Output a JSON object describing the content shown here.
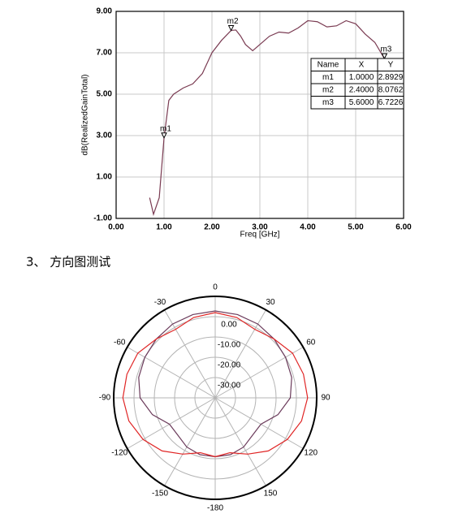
{
  "heading": "3、 方向图测试",
  "chart_data": [
    {
      "type": "line",
      "xlabel": "Freq [GHz]",
      "ylabel": "dB(RealizedGainTotal)",
      "x": [
        0.7,
        0.78,
        0.9,
        1.0,
        1.1,
        1.2,
        1.4,
        1.6,
        1.8,
        2.0,
        2.2,
        2.4,
        2.5,
        2.6,
        2.7,
        2.85,
        3.0,
        3.2,
        3.4,
        3.6,
        3.8,
        4.0,
        4.2,
        4.4,
        4.6,
        4.8,
        5.0,
        5.2,
        5.4,
        5.6
      ],
      "values": [
        0,
        -0.8,
        0,
        2.89,
        4.7,
        5.0,
        5.3,
        5.5,
        6.0,
        7.0,
        7.6,
        8.08,
        8.1,
        7.8,
        7.4,
        7.1,
        7.4,
        7.8,
        8.0,
        7.95,
        8.2,
        8.55,
        8.5,
        8.25,
        8.3,
        8.55,
        8.4,
        7.9,
        7.5,
        6.72
      ],
      "color": "#7a3b52",
      "xlim": [
        0,
        6
      ],
      "ylim": [
        -1,
        9
      ],
      "xticks": [
        {
          "value": 0,
          "label": "0.00"
        },
        {
          "value": 1,
          "label": "1.00"
        },
        {
          "value": 2,
          "label": "2.00"
        },
        {
          "value": 3,
          "label": "3.00"
        },
        {
          "value": 4,
          "label": "4.00"
        },
        {
          "value": 5,
          "label": "5.00"
        },
        {
          "value": 6,
          "label": "6.00"
        }
      ],
      "yticks": [
        {
          "value": -1,
          "label": "-1.00"
        },
        {
          "value": 1,
          "label": "1.00"
        },
        {
          "value": 3,
          "label": "3.00"
        },
        {
          "value": 5,
          "label": "5.00"
        },
        {
          "value": 7,
          "label": "7.00"
        },
        {
          "value": 9,
          "label": "9.00"
        }
      ],
      "grid": true,
      "markers": {
        "columns": [
          "Name",
          "X",
          "Y"
        ],
        "names": [
          "m1",
          "m2",
          "m3"
        ],
        "x": [
          1,
          2.4,
          5.6
        ],
        "x_labels": [
          "1.0000",
          "2.4000",
          "5.6000"
        ],
        "y": [
          2.8929,
          8.0762,
          6.7226
        ]
      }
    },
    {
      "type": "polar",
      "theta": [
        -180,
        -165,
        -150,
        -135,
        -120,
        -105,
        -90,
        -75,
        -60,
        -45,
        -30,
        -15,
        0,
        15,
        30,
        45,
        60,
        75,
        90,
        105,
        120,
        135,
        150,
        165
      ],
      "series": [
        {
          "color": "#6b3b5b",
          "values": [
            -11,
            -11,
            -12,
            -14,
            -14,
            -8,
            -3,
            -1,
            0,
            1,
            2,
            2.5,
            2.8,
            2.5,
            2,
            1,
            0,
            -1,
            -3,
            -8,
            -14,
            -14,
            -12,
            -11
          ]
        },
        {
          "color": "#e02525",
          "values": [
            -11,
            -12,
            -8,
            -3,
            1,
            4,
            5.5,
            5,
            4,
            1,
            -1,
            1,
            2,
            1,
            -1,
            1,
            4,
            5,
            5.5,
            4,
            1,
            -3,
            -8,
            -12
          ]
        }
      ],
      "rlim": [
        -40,
        10
      ],
      "rticks": [
        {
          "value": 0,
          "label": "0.00"
        },
        {
          "value": -10,
          "label": "-10.00"
        },
        {
          "value": -20,
          "label": "-20.00"
        },
        {
          "value": -30,
          "label": "-30.00"
        }
      ],
      "thetaticks": [
        0,
        30,
        60,
        90,
        120,
        150,
        -180,
        -150,
        -120,
        -90,
        -60,
        -30
      ]
    }
  ]
}
